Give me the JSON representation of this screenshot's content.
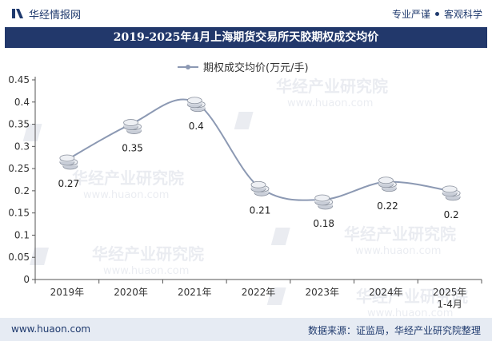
{
  "header": {
    "site_name": "华经情报网",
    "tag1": "专业严谨",
    "tag2": "客观科学"
  },
  "title": "2019-2025年4月上海期货交易所天胶期权成交均价",
  "watermark": {
    "text": "华经产业研究院",
    "url_text": "www.huaon.com"
  },
  "footer": {
    "website": "www.huaon.com",
    "source": "数据来源：证监局，华经产业研究院整理"
  },
  "colors": {
    "line": "#8c99b3",
    "title_bg": "#22386b",
    "footer_bg": "#e6ebf3",
    "text": "#1f3a6e"
  },
  "chart_data": {
    "type": "line",
    "categories": [
      "2019年",
      "2020年",
      "2021年",
      "2022年",
      "2023年",
      "2024年",
      "2025年\n1-4月"
    ],
    "series": [
      {
        "name": "期权成交均价(万元/手)",
        "values": [
          0.27,
          0.35,
          0.4,
          0.21,
          0.18,
          0.22,
          0.2
        ]
      }
    ],
    "data_labels": [
      "0.27",
      "0.35",
      "0.4",
      "0.21",
      "0.18",
      "0.22",
      "0.2"
    ],
    "y_ticks": [
      "0",
      "0.05",
      "0.1",
      "0.15",
      "0.2",
      "0.25",
      "0.3",
      "0.35",
      "0.4",
      "0.45"
    ],
    "ylim": [
      0,
      0.45
    ],
    "smooth": true,
    "legend_position": "top-center",
    "grid": false
  }
}
